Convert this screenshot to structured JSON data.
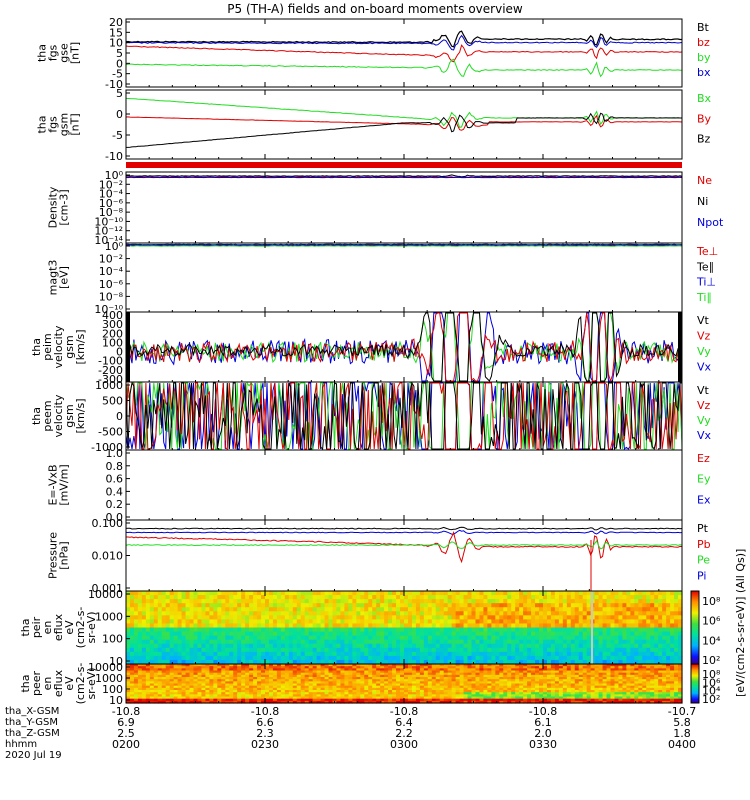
{
  "title": "P5 (TH-A) fields and on-board moments overview",
  "colors": {
    "black": "#000000",
    "red": "#e00000",
    "green": "#22dd22",
    "blue": "#0000dd",
    "fgs_blue": "#0000cc"
  },
  "chart_data": [
    {
      "type": "line",
      "panel": "fgs_gse",
      "ylabel": [
        "tha",
        "fgs",
        "gse",
        "[nT]"
      ],
      "ylim": [
        -10,
        20
      ],
      "yticks": [
        "20",
        "15",
        "10",
        "5",
        "0",
        "-5",
        "-10"
      ],
      "legend": [
        {
          "label": "Bt",
          "color": "#000000"
        },
        {
          "label": "bz",
          "color": "#e00000"
        },
        {
          "label": "by",
          "color": "#22dd22"
        },
        {
          "label": "bx",
          "color": "#0000cc"
        }
      ]
    },
    {
      "type": "line",
      "panel": "fgs_gsm",
      "ylabel": [
        "tha",
        "fgs",
        "gsm",
        "[nT]"
      ],
      "ylim": [
        -12,
        9
      ],
      "yticks": [
        "5",
        "0",
        "-5",
        "-10"
      ],
      "legend": [
        {
          "label": "Bx",
          "color": "#22dd22"
        },
        {
          "label": "By",
          "color": "#e00000"
        },
        {
          "label": "Bz",
          "color": "#000000"
        }
      ]
    },
    {
      "type": "line",
      "panel": "density",
      "ylabel": [
        "Density",
        "[cm-3]"
      ],
      "yscale": "log",
      "yticks": [
        "10⁰",
        "10⁻²",
        "10⁻⁴",
        "10⁻⁶",
        "10⁻⁸",
        "10⁻¹⁰",
        "10⁻¹²",
        "10⁻¹⁴"
      ],
      "legend": [
        {
          "label": "Ne",
          "color": "#e00000"
        },
        {
          "label": "Ni",
          "color": "#000000"
        },
        {
          "label": "Npot",
          "color": "#0000dd"
        }
      ]
    },
    {
      "type": "line",
      "panel": "temperature",
      "ylabel": [
        "magt3",
        "[eV]"
      ],
      "yscale": "log",
      "yticks": [
        "10⁰",
        "10⁻²",
        "10⁻⁴",
        "10⁻⁶",
        "10⁻⁸",
        "10⁻¹⁰"
      ],
      "legend": [
        {
          "label": "Te⊥",
          "color": "#e00000"
        },
        {
          "label": "Te∥",
          "color": "#000000"
        },
        {
          "label": "Ti⊥",
          "color": "#0000dd"
        },
        {
          "label": "Ti∥",
          "color": "#22dd22"
        }
      ]
    },
    {
      "type": "line",
      "panel": "peim_velocity",
      "ylabel": [
        "tha",
        "peim",
        "velocity",
        "gsm",
        "[km/s]"
      ],
      "ylim": [
        -300,
        400
      ],
      "yticks": [
        "400",
        "300",
        "200",
        "100",
        "0",
        "-100",
        "-200",
        "-300"
      ],
      "legend": [
        {
          "label": "Vt",
          "color": "#000000"
        },
        {
          "label": "Vz",
          "color": "#e00000"
        },
        {
          "label": "Vy",
          "color": "#22dd22"
        },
        {
          "label": "Vx",
          "color": "#0000dd"
        }
      ]
    },
    {
      "type": "line",
      "panel": "peem_velocity",
      "ylabel": [
        "tha",
        "peem",
        "velocity",
        "gsm",
        "[km/s]"
      ],
      "ylim": [
        -1000,
        1000
      ],
      "yticks": [
        "1000",
        "500",
        "0",
        "-500",
        "-1000"
      ],
      "legend": [
        {
          "label": "Vt",
          "color": "#000000"
        },
        {
          "label": "Vz",
          "color": "#e00000"
        },
        {
          "label": "Vy",
          "color": "#22dd22"
        },
        {
          "label": "Vx",
          "color": "#0000dd"
        }
      ]
    },
    {
      "type": "line",
      "panel": "efield",
      "ylabel": [
        "E=-VxB",
        "[mV/m]"
      ],
      "ylim": [
        0.0,
        1.0
      ],
      "yticks": [
        "1.0",
        "0.8",
        "0.6",
        "0.4",
        "0.2",
        "0.0"
      ],
      "legend": [
        {
          "label": "Ez",
          "color": "#e00000"
        },
        {
          "label": "Ey",
          "color": "#22dd22"
        },
        {
          "label": "Ex",
          "color": "#0000dd"
        }
      ]
    },
    {
      "type": "line",
      "panel": "pressure",
      "ylabel": [
        "Pressure",
        "[nPa]"
      ],
      "yscale": "log",
      "ylim": [
        0.001,
        0.3
      ],
      "yticks": [
        "0.100",
        "0.010",
        "0.001"
      ],
      "legend": [
        {
          "label": "Pt",
          "color": "#000000"
        },
        {
          "label": "Pb",
          "color": "#e00000"
        },
        {
          "label": "Pe",
          "color": "#22dd22"
        },
        {
          "label": "Pi",
          "color": "#0000dd"
        }
      ]
    },
    {
      "type": "heatmap",
      "panel": "peir_spectrogram",
      "ylabel": [
        "tha",
        "peir",
        "en",
        "eflux",
        "eV",
        "(cm2-s-",
        "sr-eV)"
      ],
      "yscale": "log",
      "yticks": [
        "10000",
        "1000",
        "100",
        "10"
      ],
      "colorbar": {
        "ticks": [
          "10⁸",
          "10⁶",
          "10⁴",
          "10²"
        ],
        "label": "[eV/(cm2-s-sr-eV)] (All Qs)]"
      }
    },
    {
      "type": "heatmap",
      "panel": "peer_spectrogram",
      "ylabel": [
        "tha",
        "peer",
        "en",
        "eflux",
        "eV",
        "(cm2-s-",
        "sr-eV)"
      ],
      "yscale": "log",
      "yticks": [
        "10000",
        "1000",
        "100",
        "10"
      ],
      "colorbar": {
        "ticks": [
          "10⁸",
          "10⁶",
          "10⁴",
          "10²"
        ],
        "label": "[eV/(cm2-s-sr-eV)]"
      }
    }
  ],
  "x_axis": {
    "xlim": [
      "2020-07-19 02:00",
      "2020-07-19 04:00"
    ],
    "ticks": [
      "0200",
      "0230",
      "0300",
      "0330",
      "0400"
    ]
  },
  "ephemeris": {
    "labels": [
      "tha_X-GSM",
      "tha_Y-GSM",
      "tha_Z-GSM",
      "hhmm",
      "2020 Jul 19"
    ],
    "x_gsm": [
      "-10.8",
      "-10.8",
      "-10.8",
      "-10.8",
      "-10.7"
    ],
    "y_gsm": [
      "6.9",
      "6.6",
      "6.4",
      "6.1",
      "5.8"
    ],
    "z_gsm": [
      "2.5",
      "2.3",
      "2.2",
      "2.0",
      "1.8"
    ]
  }
}
